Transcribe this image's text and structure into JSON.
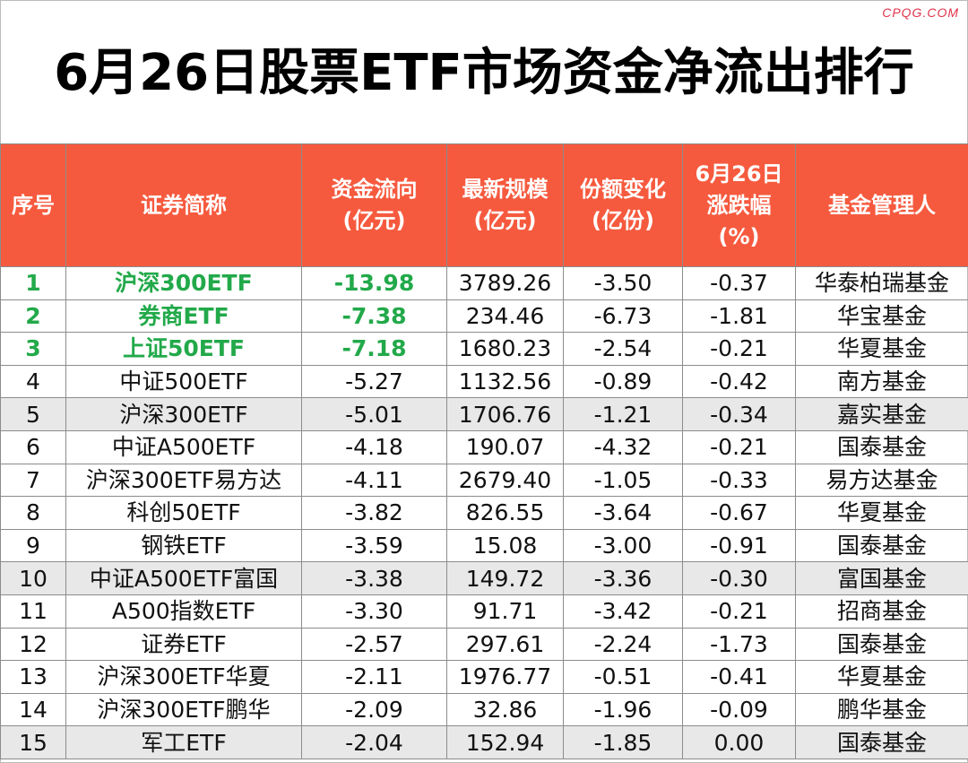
{
  "watermark": "CPQG.COM",
  "title": "6月26日股票ETF市场资金净流出排行",
  "headers": {
    "rank": "序号",
    "name": "证券简称",
    "flow_l1": "资金流向",
    "flow_l2": "(亿元)",
    "scale_l1": "最新规模",
    "scale_l2": "(亿元)",
    "share_l1": "份额变化",
    "share_l2": "(亿份)",
    "change_l1": "6月26日",
    "change_l2": "涨跌幅",
    "change_l3": "(%)",
    "manager": "基金管理人"
  },
  "rows": [
    {
      "rank": "1",
      "name": "沪深300ETF",
      "flow": "-13.98",
      "scale": "3789.26",
      "share": "-3.50",
      "change": "-0.37",
      "manager": "华泰柏瑞基金"
    },
    {
      "rank": "2",
      "name": "券商ETF",
      "flow": "-7.38",
      "scale": "234.46",
      "share": "-6.73",
      "change": "-1.81",
      "manager": "华宝基金"
    },
    {
      "rank": "3",
      "name": "上证50ETF",
      "flow": "-7.18",
      "scale": "1680.23",
      "share": "-2.54",
      "change": "-0.21",
      "manager": "华夏基金"
    },
    {
      "rank": "4",
      "name": "中证500ETF",
      "flow": "-5.27",
      "scale": "1132.56",
      "share": "-0.89",
      "change": "-0.42",
      "manager": "南方基金"
    },
    {
      "rank": "5",
      "name": "沪深300ETF",
      "flow": "-5.01",
      "scale": "1706.76",
      "share": "-1.21",
      "change": "-0.34",
      "manager": "嘉实基金"
    },
    {
      "rank": "6",
      "name": "中证A500ETF",
      "flow": "-4.18",
      "scale": "190.07",
      "share": "-4.32",
      "change": "-0.21",
      "manager": "国泰基金"
    },
    {
      "rank": "7",
      "name": "沪深300ETF易方达",
      "flow": "-4.11",
      "scale": "2679.40",
      "share": "-1.05",
      "change": "-0.33",
      "manager": "易方达基金"
    },
    {
      "rank": "8",
      "name": "科创50ETF",
      "flow": "-3.82",
      "scale": "826.55",
      "share": "-3.64",
      "change": "-0.67",
      "manager": "华夏基金"
    },
    {
      "rank": "9",
      "name": "钢铁ETF",
      "flow": "-3.59",
      "scale": "15.08",
      "share": "-3.00",
      "change": "-0.91",
      "manager": "国泰基金"
    },
    {
      "rank": "10",
      "name": "中证A500ETF富国",
      "flow": "-3.38",
      "scale": "149.72",
      "share": "-3.36",
      "change": "-0.30",
      "manager": "富国基金"
    },
    {
      "rank": "11",
      "name": "A500指数ETF",
      "flow": "-3.30",
      "scale": "91.71",
      "share": "-3.42",
      "change": "-0.21",
      "manager": "招商基金"
    },
    {
      "rank": "12",
      "name": "证券ETF",
      "flow": "-2.57",
      "scale": "297.61",
      "share": "-2.24",
      "change": "-1.73",
      "manager": "国泰基金"
    },
    {
      "rank": "13",
      "name": "沪深300ETF华夏",
      "flow": "-2.11",
      "scale": "1976.77",
      "share": "-0.51",
      "change": "-0.41",
      "manager": "华夏基金"
    },
    {
      "rank": "14",
      "name": "沪深300ETF鹏华",
      "flow": "-2.09",
      "scale": "32.86",
      "share": "-1.96",
      "change": "-0.09",
      "manager": "鹏华基金"
    },
    {
      "rank": "15",
      "name": "军工ETF",
      "flow": "-2.04",
      "scale": "152.94",
      "share": "-1.85",
      "change": "0.00",
      "manager": "国泰基金"
    }
  ],
  "highlight_color": "#22a94a",
  "header_color": "#f65a3e"
}
